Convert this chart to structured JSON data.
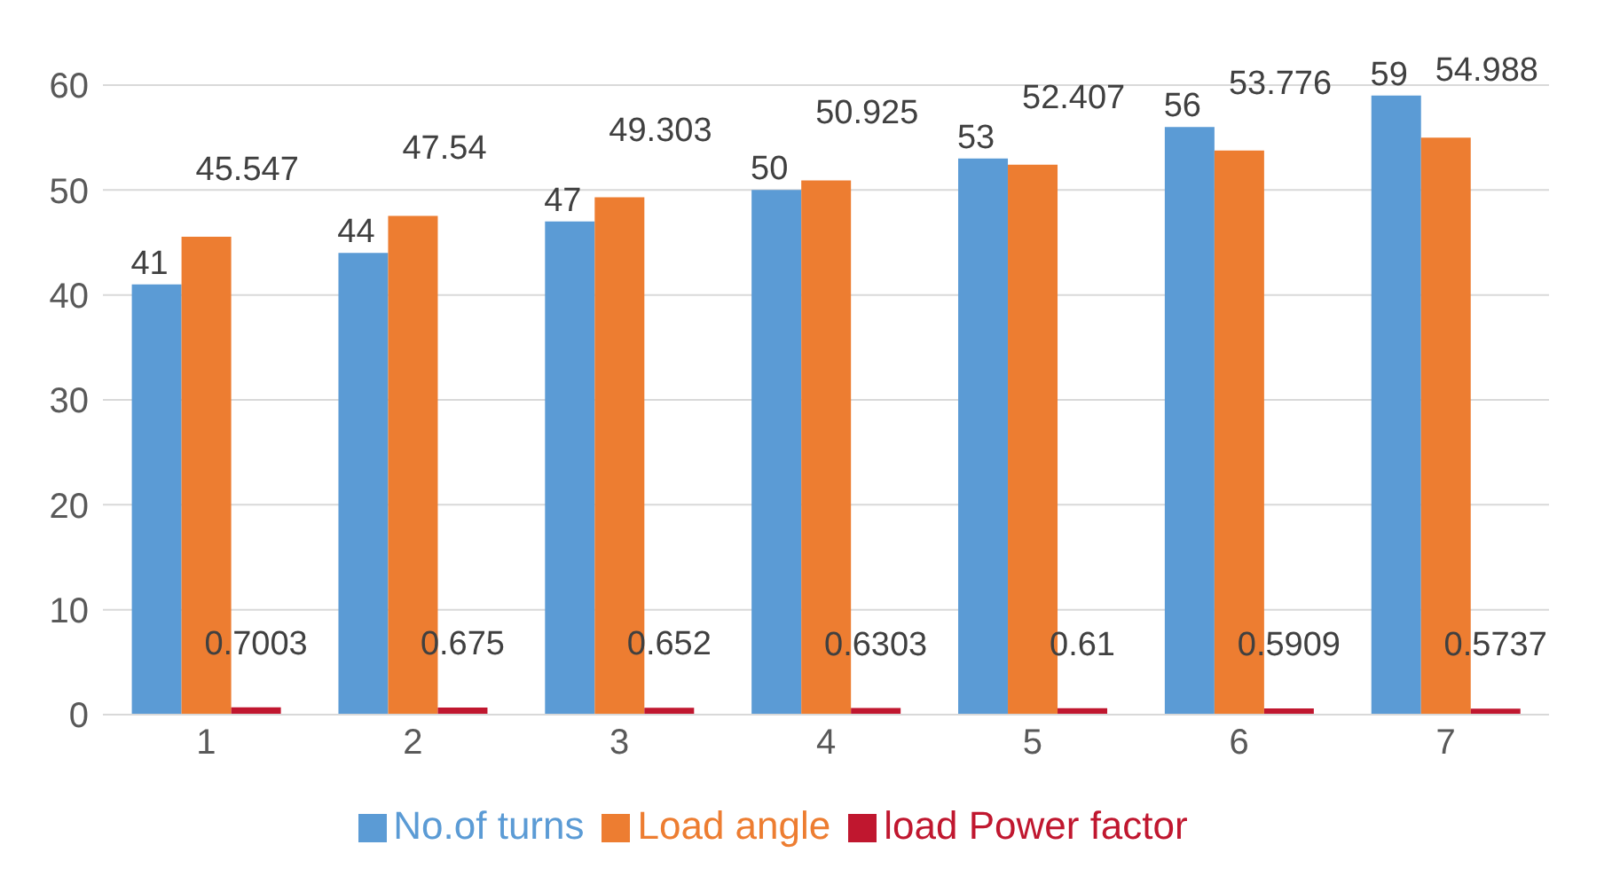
{
  "chart_data": {
    "type": "bar",
    "categories": [
      "1",
      "2",
      "3",
      "4",
      "5",
      "6",
      "7"
    ],
    "series": [
      {
        "name": "No.of turns",
        "color": "#5b9bd5",
        "values": [
          41,
          44,
          47,
          50,
          53,
          56,
          59
        ]
      },
      {
        "name": "Load angle",
        "color": "#ed7d31",
        "values": [
          45.547,
          47.54,
          49.303,
          50.925,
          52.407,
          53.776,
          54.988
        ]
      },
      {
        "name": "load Power factor",
        "color": "#c0172f",
        "values": [
          0.7003,
          0.675,
          0.652,
          0.6303,
          0.61,
          0.5909,
          0.5737
        ]
      }
    ],
    "ylim": [
      0,
      60
    ],
    "yticks": [
      0,
      10,
      20,
      30,
      40,
      50,
      60
    ],
    "grid": "y",
    "legend": "bottom",
    "data_labels": true
  }
}
